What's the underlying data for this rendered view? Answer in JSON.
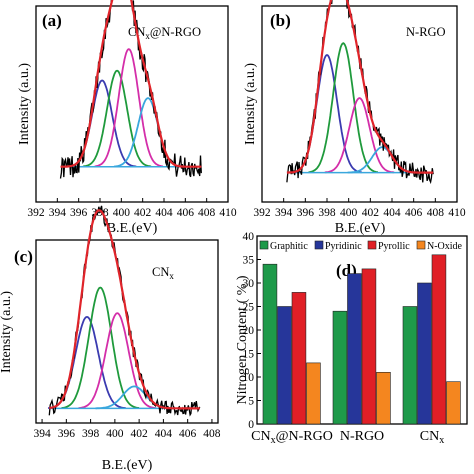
{
  "chart_data": [
    {
      "type": "line",
      "panel": "(a)",
      "title": "CNx@N-RGO",
      "title_main": "CN",
      "title_sub": "x",
      "title_rest": "@N-RGO",
      "xlabel": "B.E.(eV)",
      "ylabel": "Intensity (a.u.)",
      "xticks": [
        392,
        394,
        396,
        398,
        400,
        402,
        404,
        406,
        408,
        410
      ],
      "xlim": [
        392,
        410
      ],
      "ylim": [
        0,
        1
      ],
      "baseline": 0.18,
      "noise_amplitude": 0.06,
      "noise_range": [
        394.3,
        407.5
      ],
      "colors": [
        "#3b3bb0",
        "#1f9a3c",
        "#d42ea9",
        "#3aa7dd"
      ],
      "peaks": [
        {
          "center": 398.2,
          "height": 0.44,
          "fwhm": 2.2
        },
        {
          "center": 399.6,
          "height": 0.49,
          "fwhm": 2.2
        },
        {
          "center": 400.7,
          "height": 0.6,
          "fwhm": 2.2
        },
        {
          "center": 402.5,
          "height": 0.35,
          "fwhm": 2.2
        }
      ]
    },
    {
      "type": "line",
      "panel": "(b)",
      "title": "N-RGO",
      "xlabel": "B.E.(eV)",
      "ylabel": "Intensity (a.u.)",
      "xticks": [
        392,
        394,
        396,
        398,
        400,
        402,
        404,
        406,
        408,
        410
      ],
      "xlim": [
        392,
        410
      ],
      "ylim": [
        0,
        1
      ],
      "baseline": 0.15,
      "noise_amplitude": 0.05,
      "noise_range": [
        394.3,
        407.8
      ],
      "colors": [
        "#3b3bb0",
        "#1f9a3c",
        "#d42ea9",
        "#3aa7dd"
      ],
      "peaks": [
        {
          "center": 398.0,
          "height": 0.6,
          "fwhm": 2.2
        },
        {
          "center": 399.5,
          "height": 0.66,
          "fwhm": 2.2
        },
        {
          "center": 401.0,
          "height": 0.38,
          "fwhm": 2.2
        },
        {
          "center": 403.1,
          "height": 0.13,
          "fwhm": 2.2
        }
      ]
    },
    {
      "type": "line",
      "panel": "(c)",
      "title": "CNx",
      "title_main": "CN",
      "title_sub": "x",
      "xlabel": "B.E.(eV)",
      "ylabel": "Intensity (a.u.)",
      "xticks": [
        394,
        396,
        398,
        400,
        402,
        404,
        406,
        408
      ],
      "xlim": [
        393.5,
        408.5
      ],
      "ylim": [
        0,
        1
      ],
      "baseline": 0.08,
      "noise_amplitude": 0.04,
      "noise_range": [
        394.6,
        407.0
      ],
      "colors": [
        "#3b3bb0",
        "#1f9a3c",
        "#d42ea9",
        "#3aa7dd"
      ],
      "peaks": [
        {
          "center": 397.7,
          "height": 0.5,
          "fwhm": 2.2
        },
        {
          "center": 398.8,
          "height": 0.66,
          "fwhm": 2.2
        },
        {
          "center": 400.2,
          "height": 0.52,
          "fwhm": 2.2
        },
        {
          "center": 401.6,
          "height": 0.12,
          "fwhm": 2.2
        }
      ]
    },
    {
      "type": "bar",
      "panel": "(d)",
      "ylabel": "Nitrogen Content ( % )",
      "categories": [
        "CNx@N-RGO",
        "N-RGO",
        "CNx"
      ],
      "category_labels": [
        {
          "main": "CN",
          "sub": "x",
          "rest": "@N-RGO"
        },
        {
          "main": "N-RGO",
          "sub": "",
          "rest": ""
        },
        {
          "main": "CN",
          "sub": "x",
          "rest": ""
        }
      ],
      "ylim": [
        0,
        40
      ],
      "yticks": [
        0,
        5,
        10,
        15,
        20,
        25,
        30,
        35,
        40
      ],
      "legend_position": "top",
      "series": [
        {
          "name": "Graphitic",
          "color": "#1e9a4a",
          "values": [
            34,
            24,
            25
          ]
        },
        {
          "name": "Pyridinic",
          "color": "#26369a",
          "values": [
            25,
            32,
            30
          ]
        },
        {
          "name": "Pyrollic",
          "color": "#e01f26",
          "values": [
            28,
            33,
            36
          ]
        },
        {
          "name": "N-Oxide",
          "color": "#f4861f",
          "values": [
            13,
            11,
            9
          ]
        }
      ]
    }
  ]
}
